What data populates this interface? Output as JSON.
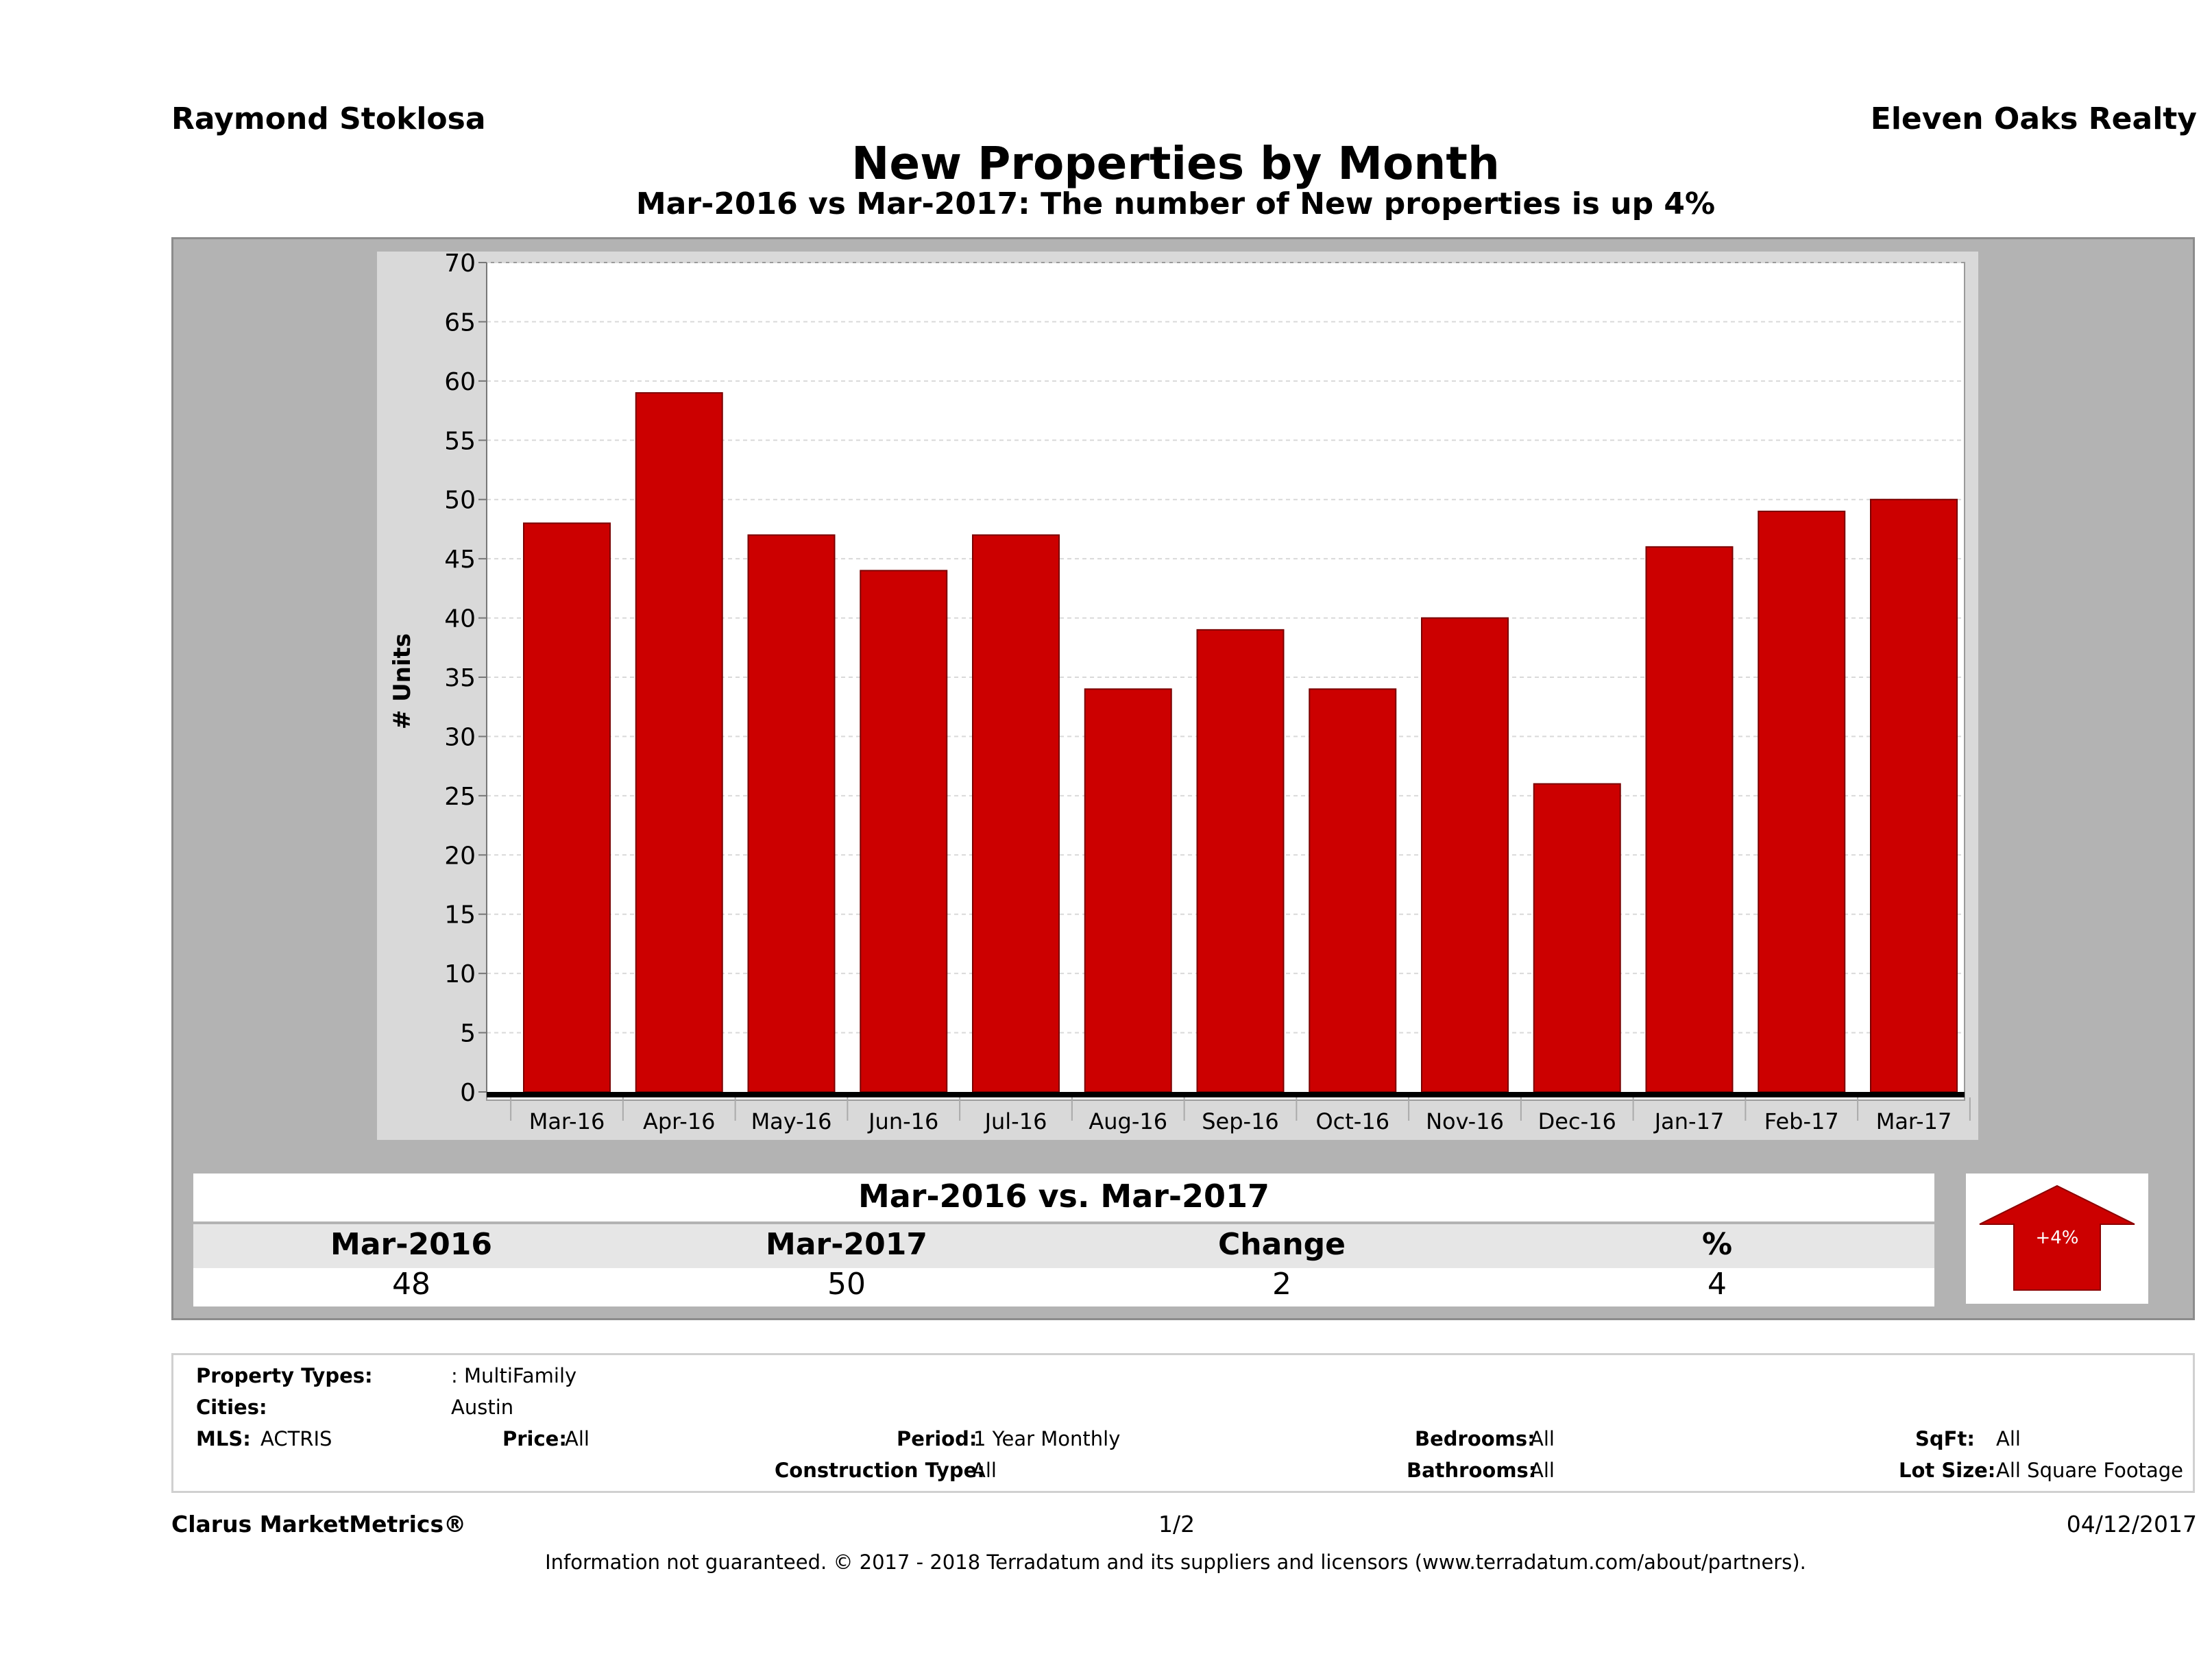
{
  "header": {
    "agent_name": "Raymond Stoklosa",
    "brokerage": "Eleven Oaks Realty",
    "title": "New Properties by Month",
    "subtitle": "Mar-2016 vs Mar-2017: The number of New  properties is up 4%"
  },
  "colors": {
    "bar": "#cc0000",
    "panel": "#b3b3b3",
    "grid": "#d9d9d9"
  },
  "chart_data": {
    "type": "bar",
    "categories": [
      "Mar-16",
      "Apr-16",
      "May-16",
      "Jun-16",
      "Jul-16",
      "Aug-16",
      "Sep-16",
      "Oct-16",
      "Nov-16",
      "Dec-16",
      "Jan-17",
      "Feb-17",
      "Mar-17"
    ],
    "values": [
      48,
      59,
      47,
      44,
      47,
      34,
      39,
      34,
      40,
      26,
      46,
      49,
      50
    ],
    "ylabel": "# Units",
    "ylim": [
      0,
      70
    ],
    "yticks": [
      0,
      5,
      10,
      15,
      20,
      25,
      30,
      35,
      40,
      45,
      50,
      55,
      60,
      65,
      70
    ],
    "grid": true,
    "legend": "none"
  },
  "comparison": {
    "title": "Mar-2016 vs. Mar-2017",
    "headers": [
      "Mar-2016",
      "Mar-2017",
      "Change",
      "%"
    ],
    "values": [
      "48",
      "50",
      "2",
      "4"
    ],
    "badge": "+4%",
    "direction_icon": "up-arrow-icon"
  },
  "filters": {
    "property_types_label": "Property Types:",
    "property_types_value": ": MultiFamily",
    "cities_label": "Cities:",
    "cities_value": "Austin",
    "mls_label": "MLS:",
    "mls_value": "ACTRIS",
    "price_label": "Price:",
    "price_value": "All",
    "period_label": "Period:",
    "period_value": "1 Year Monthly",
    "construction_label": "Construction Type:",
    "construction_value": "All",
    "bedrooms_label": "Bedrooms:",
    "bedrooms_value": "All",
    "bathrooms_label": "Bathrooms:",
    "bathrooms_value": "All",
    "sqft_label": "SqFt:",
    "sqft_value": "All",
    "lotsize_label": "Lot Size:",
    "lotsize_value": "All Square Footage"
  },
  "footer": {
    "brand": "Clarus MarketMetrics®",
    "page": "1/2",
    "date": "04/12/2017",
    "disclaimer": "Information not guaranteed. © 2017 - 2018 Terradatum and its suppliers and licensors (www.terradatum.com/about/partners)."
  }
}
